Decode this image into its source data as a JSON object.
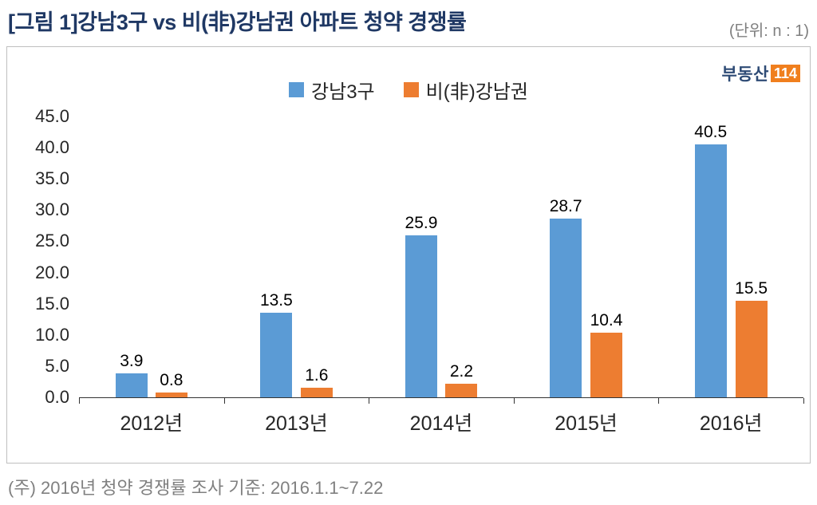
{
  "header": {
    "title": "[그림 1]강남3구 vs 비(非)강남권 아파트 청약 경쟁률",
    "unit": "(단위: n : 1)"
  },
  "logo": {
    "text": "부동산",
    "badge": "114"
  },
  "chart_data": {
    "type": "bar",
    "title": "",
    "categories": [
      "2012년",
      "2013년",
      "2014년",
      "2015년",
      "2016년"
    ],
    "series": [
      {
        "name": "강남3구",
        "color": "#5B9BD5",
        "values": [
          3.9,
          13.5,
          25.9,
          28.7,
          40.5
        ]
      },
      {
        "name": "비(非)강남권",
        "color": "#ED7D31",
        "values": [
          0.8,
          1.6,
          2.2,
          10.4,
          15.5
        ]
      }
    ],
    "ylim": [
      0,
      45
    ],
    "ytick_step": 5,
    "yticks": [
      "45.0",
      "40.0",
      "35.0",
      "30.0",
      "25.0",
      "20.0",
      "15.0",
      "10.0",
      "5.0",
      "0.0"
    ],
    "legend_position": "top-center",
    "grid": false,
    "value_labels": true
  },
  "footer": {
    "note": "(주) 2016년 청약 경쟁률 조사 기준: 2016.1.1~7.22"
  }
}
